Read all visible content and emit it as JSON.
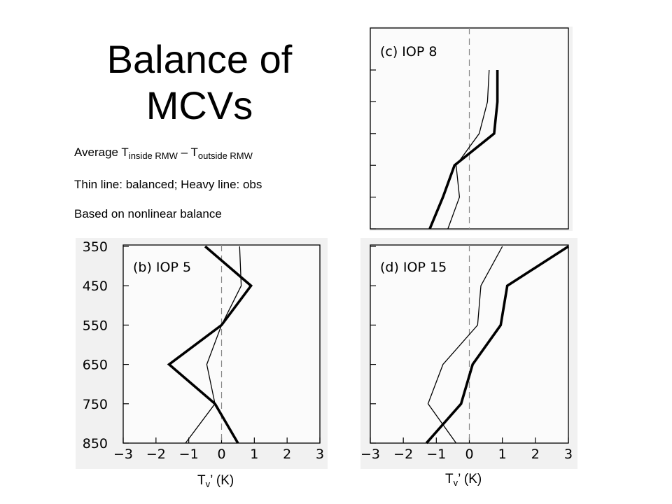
{
  "slide": {
    "title": "Balance of MCVs",
    "notes": {
      "n1_prefix": "Average T",
      "n1_sub1": "inside RMW",
      "n1_mid": " – T",
      "n1_sub2": "outside RMW",
      "n2": "Thin line: balanced; Heavy line: obs",
      "n3": "Based on nonlinear balance"
    },
    "xcaption_b": {
      "main": "T",
      "sub": "v",
      "rest": "’ (K)"
    },
    "xcaption_d": {
      "main": "T",
      "sub": "v",
      "rest": "’ (K)"
    }
  },
  "chart_data": [
    {
      "type": "line",
      "panel": "(c) IOP 8",
      "xlim": [
        -3,
        3
      ],
      "ylim": [
        850,
        350
      ],
      "y_ticks": [
        350,
        450,
        550,
        650,
        750,
        850
      ],
      "y_tick_labels_shown": false,
      "x_tick_labels_shown": false,
      "ref_line_x": 0,
      "series": [
        {
          "style": "thin",
          "x": [
            0.6,
            0.55,
            0.3,
            -0.4,
            -0.3,
            -0.65
          ],
          "y": [
            350,
            450,
            550,
            650,
            750,
            850
          ]
        },
        {
          "style": "heavy",
          "x": [
            0.85,
            0.85,
            0.75,
            -0.45,
            -0.8,
            -1.2
          ],
          "y": [
            350,
            450,
            550,
            650,
            750,
            850
          ]
        }
      ]
    },
    {
      "type": "line",
      "panel": "(b) IOP 5",
      "xlim": [
        -3,
        3
      ],
      "ylim": [
        850,
        350
      ],
      "y_ticks": [
        350,
        450,
        550,
        650,
        750,
        850
      ],
      "y_tick_labels": [
        "350",
        "450",
        "550",
        "650",
        "750",
        "850"
      ],
      "x_ticks": [
        -3,
        -2,
        -1,
        0,
        1,
        2,
        3
      ],
      "x_tick_labels": [
        "−3",
        "−2",
        "−1",
        "0",
        "1",
        "2",
        "3"
      ],
      "ref_line_x": 0,
      "series": [
        {
          "style": "thin",
          "x": [
            0.55,
            0.6,
            0.0,
            -0.45,
            -0.2,
            -1.1
          ],
          "y": [
            350,
            450,
            550,
            650,
            750,
            850
          ]
        },
        {
          "style": "heavy",
          "x": [
            -0.5,
            0.9,
            0.0,
            -1.6,
            -0.2,
            0.5
          ],
          "y": [
            350,
            450,
            550,
            650,
            750,
            850
          ]
        }
      ]
    },
    {
      "type": "line",
      "panel": "(d) IOP 15",
      "xlim": [
        -3,
        3
      ],
      "ylim": [
        850,
        350
      ],
      "y_ticks": [
        350,
        450,
        550,
        650,
        750,
        850
      ],
      "y_tick_labels_shown": false,
      "x_ticks": [
        -3,
        -2,
        -1,
        0,
        1,
        2,
        3
      ],
      "x_tick_labels": [
        "−3",
        "−2",
        "−1",
        "0",
        "1",
        "2",
        "3"
      ],
      "ref_line_x": 0,
      "series": [
        {
          "style": "thin",
          "x": [
            1.0,
            0.35,
            0.25,
            -0.8,
            -1.25,
            -0.4
          ],
          "y": [
            350,
            450,
            550,
            650,
            750,
            850
          ]
        },
        {
          "style": "heavy",
          "x": [
            3.0,
            1.15,
            0.95,
            0.1,
            -0.25,
            -1.3
          ],
          "y": [
            350,
            450,
            550,
            650,
            750,
            850
          ]
        }
      ]
    }
  ]
}
